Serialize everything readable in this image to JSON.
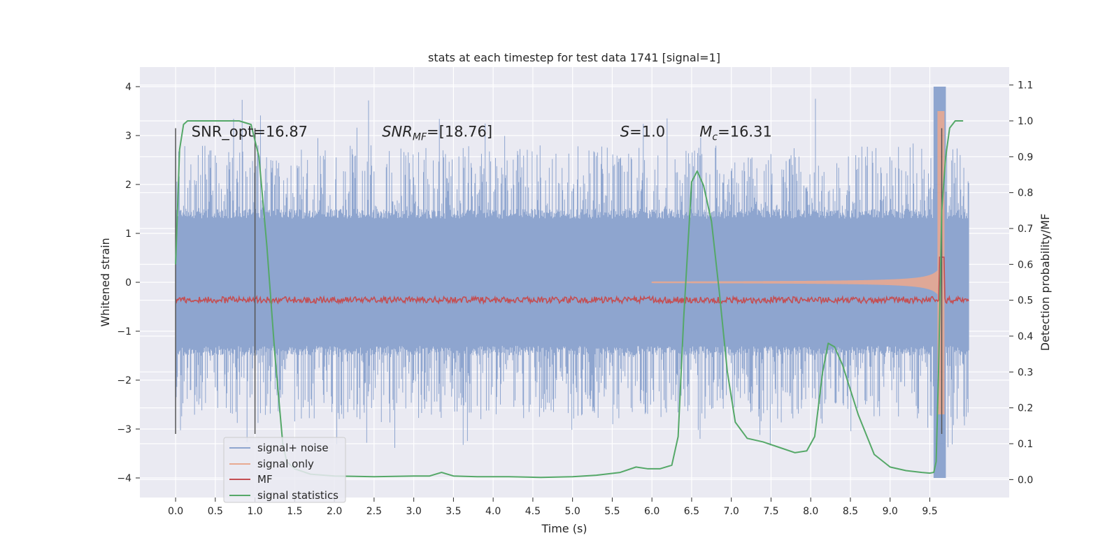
{
  "chart_data": {
    "type": "line",
    "title": "stats at each timestep for test data 1741 [signal=1]",
    "xlabel": "Time (s)",
    "ylabel": "Whitened strain",
    "y2label": "Detection probability/MF",
    "xlim": [
      -0.45,
      10.5
    ],
    "ylim": [
      -4.4,
      4.4
    ],
    "y2lim": [
      -0.05,
      1.15
    ],
    "x_ticks": [
      0.0,
      0.5,
      1.0,
      1.5,
      2.0,
      2.5,
      3.0,
      3.5,
      4.0,
      4.5,
      5.0,
      5.5,
      6.0,
      6.5,
      7.0,
      7.5,
      8.0,
      8.5,
      9.0,
      9.5
    ],
    "x_tick_labels": [
      "0.0",
      "0.5",
      "1.0",
      "1.5",
      "2.0",
      "2.5",
      "3.0",
      "3.5",
      "4.0",
      "4.5",
      "5.0",
      "5.5",
      "6.0",
      "6.5",
      "7.0",
      "7.5",
      "8.0",
      "8.5",
      "9.0",
      "9.5"
    ],
    "y_ticks": [
      -4,
      -3,
      -2,
      -1,
      0,
      1,
      2,
      3,
      4
    ],
    "y_tick_labels": [
      "−4",
      "−3",
      "−2",
      "−1",
      "0",
      "1",
      "2",
      "3",
      "4"
    ],
    "y2_ticks": [
      0.0,
      0.1,
      0.2,
      0.3,
      0.4,
      0.5,
      0.6,
      0.7,
      0.8,
      0.9,
      1.0,
      1.1
    ],
    "y2_tick_labels": [
      "0.0",
      "0.1",
      "0.2",
      "0.3",
      "0.4",
      "0.5",
      "0.6",
      "0.7",
      "0.8",
      "0.9",
      "1.0",
      "1.1"
    ],
    "grid": true,
    "background": "#eaeaf2",
    "legend_position": "lower-left",
    "annotations": [
      {
        "text": "SNR_opt=16.87",
        "x": 0.2,
        "y": 3.15
      },
      {
        "text": "SNR",
        "sub": "MF",
        "suffix": "=[18.76]",
        "italic": true,
        "x": 2.6,
        "y": 3.15
      },
      {
        "text": "S",
        "suffix": "=1.0",
        "italic": true,
        "x": 5.6,
        "y": 3.15
      },
      {
        "text": "M",
        "sub": "c",
        "suffix": "=16.31",
        "italic": true,
        "x": 6.6,
        "y": 3.15
      }
    ],
    "vlines": [
      {
        "x": 0.0,
        "ymin": -3.1,
        "ymax": 3.15
      },
      {
        "x": 1.0,
        "ymin": -3.1,
        "ymax": 3.15
      },
      {
        "x": 9.65,
        "ymin": -3.1,
        "ymax": 3.15
      }
    ],
    "series": [
      {
        "name": "signal+ noise",
        "color": "#8ea5cf",
        "axis": "left",
        "t_range": [
          0.0,
          9.99
        ],
        "band": 1.3,
        "spike_max": 4.0,
        "spike_min": -4.0
      },
      {
        "name": "signal only",
        "color": "#e8a990",
        "axis": "left",
        "t_range": [
          0.0,
          9.68
        ],
        "peak": 3.5,
        "trough": -2.7
      },
      {
        "name": "MF",
        "color": "#c44e52",
        "axis": "right",
        "t_range": [
          0.0,
          9.99
        ],
        "baseline": 0.5,
        "peak": 0.62,
        "peak_x": 9.65
      },
      {
        "name": "signal statistics",
        "color": "#55a868",
        "axis": "right",
        "x": [
          0.0,
          0.05,
          0.1,
          0.15,
          0.2,
          0.3,
          0.5,
          0.8,
          0.95,
          1.05,
          1.15,
          1.25,
          1.35,
          1.4,
          1.5,
          1.7,
          2.0,
          2.5,
          3.0,
          3.2,
          3.35,
          3.5,
          3.8,
          4.2,
          4.6,
          5.0,
          5.3,
          5.6,
          5.8,
          5.95,
          6.1,
          6.25,
          6.33,
          6.4,
          6.5,
          6.57,
          6.65,
          6.75,
          6.85,
          6.95,
          7.05,
          7.2,
          7.4,
          7.6,
          7.8,
          7.95,
          8.05,
          8.15,
          8.22,
          8.3,
          8.4,
          8.6,
          8.8,
          9.0,
          9.2,
          9.4,
          9.5,
          9.55,
          9.58,
          9.61,
          9.65,
          9.7,
          9.75,
          9.82,
          9.92
        ],
        "y": [
          0.6,
          0.92,
          0.99,
          1.0,
          1.0,
          1.0,
          1.0,
          1.0,
          0.99,
          0.9,
          0.65,
          0.35,
          0.1,
          0.05,
          0.03,
          0.015,
          0.01,
          0.008,
          0.01,
          0.01,
          0.02,
          0.01,
          0.008,
          0.008,
          0.006,
          0.008,
          0.012,
          0.02,
          0.035,
          0.03,
          0.03,
          0.04,
          0.12,
          0.45,
          0.83,
          0.86,
          0.82,
          0.72,
          0.52,
          0.3,
          0.16,
          0.115,
          0.105,
          0.09,
          0.075,
          0.08,
          0.12,
          0.3,
          0.38,
          0.37,
          0.32,
          0.18,
          0.07,
          0.035,
          0.025,
          0.02,
          0.018,
          0.02,
          0.05,
          0.3,
          0.75,
          0.9,
          0.98,
          1.0,
          1.0
        ]
      }
    ]
  }
}
